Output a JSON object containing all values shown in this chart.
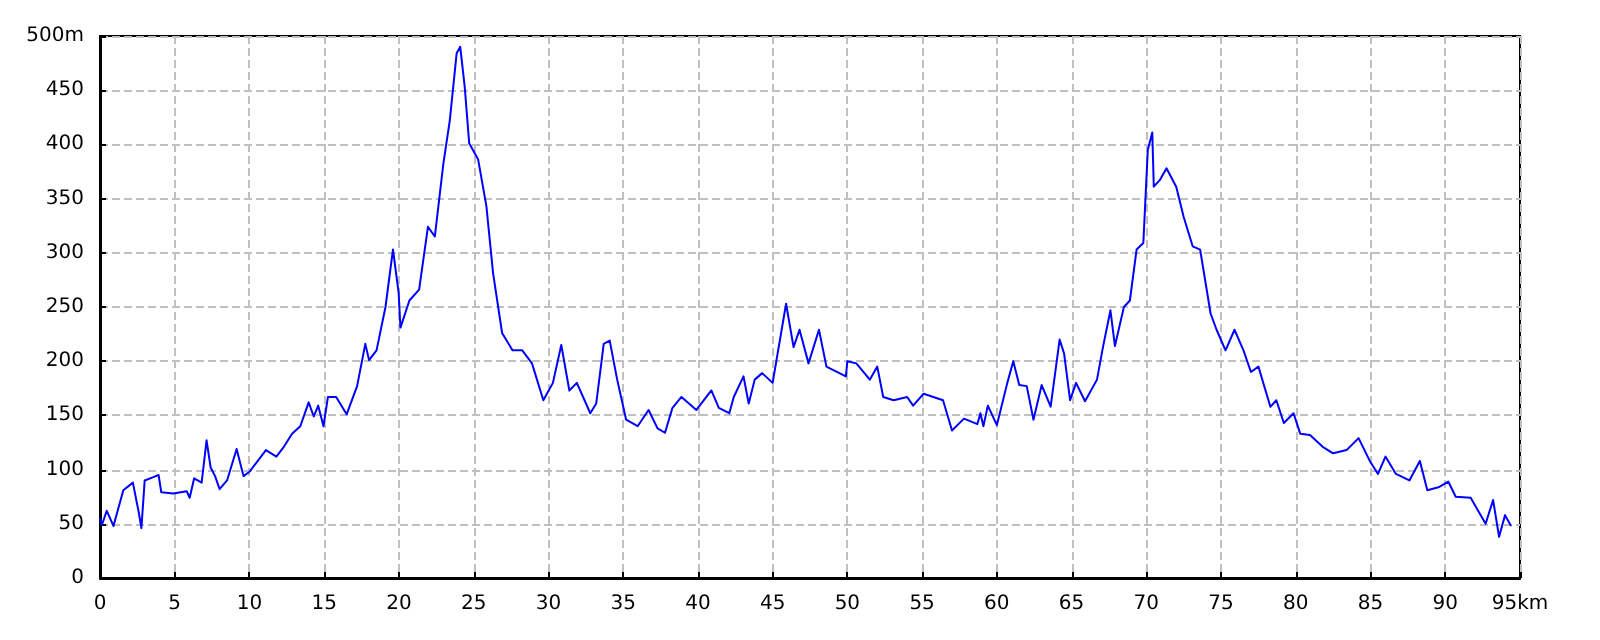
{
  "chart_data": {
    "type": "line",
    "x": [
      0,
      0.13,
      0.45,
      0.9,
      1.56,
      2.2,
      2.6,
      2.77,
      2.99,
      3.57,
      3.92,
      4.1,
      4.9,
      5.8,
      6.0,
      6.3,
      6.8,
      7.13,
      7.4,
      7.7,
      8.0,
      8.5,
      9.14,
      9.6,
      10.0,
      11.1,
      11.8,
      12.3,
      12.85,
      13.4,
      13.96,
      14.3,
      14.6,
      14.95,
      15.25,
      15.8,
      16.5,
      17.2,
      17.75,
      18.0,
      18.5,
      19.1,
      19.6,
      19.98,
      20.1,
      20.7,
      21.35,
      21.94,
      22.4,
      22.97,
      23.4,
      23.86,
      24.1,
      24.4,
      24.7,
      25.3,
      25.85,
      26.3,
      26.9,
      27.6,
      28.25,
      28.9,
      29.66,
      30.3,
      30.86,
      31.4,
      31.9,
      32.8,
      33.2,
      33.7,
      34.1,
      34.6,
      35.2,
      35.97,
      36.7,
      37.3,
      37.8,
      38.3,
      38.9,
      39.9,
      40.9,
      41.4,
      42.1,
      42.4,
      43.05,
      43.4,
      43.8,
      44.3,
      45.0,
      45.9,
      46.4,
      46.8,
      47.4,
      48.1,
      48.6,
      49.9,
      50.0,
      50.6,
      51.5,
      52.0,
      52.4,
      53.1,
      54.0,
      54.4,
      55.1,
      56.4,
      57.0,
      57.8,
      58.7,
      58.9,
      59.1,
      59.4,
      60.0,
      60.7,
      61.1,
      61.5,
      62.0,
      62.45,
      63.0,
      63.6,
      64.2,
      64.5,
      64.9,
      65.3,
      65.9,
      66.7,
      67.1,
      67.6,
      67.9,
      68.5,
      68.9,
      69.35,
      69.8,
      70.1,
      70.4,
      70.5,
      70.9,
      71.35,
      72.0,
      72.5,
      73.1,
      73.6,
      74.3,
      74.7,
      75.3,
      75.9,
      76.5,
      77.0,
      77.5,
      78.3,
      78.7,
      79.2,
      79.85,
      80.3,
      80.95,
      81.8,
      82.5,
      83.4,
      84.2,
      84.95,
      85.5,
      86.0,
      86.7,
      87.6,
      88.3,
      88.8,
      89.6,
      90.2,
      90.7,
      91.7,
      92.7,
      93.2,
      93.6,
      94.0,
      94.4
    ],
    "series": [
      {
        "color": "#0000ff",
        "values": [
          55,
          49,
          62,
          48,
          81,
          88,
          60,
          46,
          90,
          93,
          95,
          79,
          78,
          80,
          74,
          92,
          88,
          127,
          102,
          94,
          82,
          90,
          119,
          94,
          98,
          118,
          112,
          121,
          133,
          140,
          162,
          149,
          159,
          140,
          167,
          167,
          151,
          177,
          216,
          201,
          210,
          250,
          303,
          263,
          231,
          256,
          266,
          324,
          315,
          382,
          422,
          484,
          490,
          453,
          401,
          386,
          343,
          281,
          226,
          210,
          210,
          198,
          164,
          180,
          215,
          173,
          180,
          152,
          161,
          216,
          219,
          183,
          146,
          140,
          155,
          138,
          134,
          157,
          167,
          155,
          173,
          157,
          152,
          167,
          186,
          161,
          183,
          189,
          180,
          253,
          213,
          229,
          198,
          229,
          195,
          186,
          200,
          198,
          183,
          195,
          167,
          164,
          167,
          159,
          170,
          164,
          136,
          147,
          142,
          152,
          140,
          159,
          141,
          180,
          200,
          178,
          177,
          146,
          178,
          158,
          220,
          207,
          164,
          180,
          163,
          183,
          213,
          247,
          214,
          250,
          256,
          303,
          309,
          395,
          411,
          361,
          367,
          378,
          361,
          333,
          306,
          303,
          244,
          229,
          210,
          229,
          210,
          190,
          195,
          158,
          164,
          143,
          152,
          133,
          132,
          121,
          115,
          118,
          129,
          108,
          96,
          112,
          96,
          90,
          108,
          81,
          84,
          89,
          75,
          74,
          50,
          72,
          38,
          58,
          48
        ]
      }
    ],
    "xlim": [
      0,
      95
    ],
    "xticks": [
      0,
      5,
      10,
      15,
      20,
      25,
      30,
      35,
      40,
      45,
      50,
      55,
      60,
      65,
      70,
      75,
      80,
      85,
      90,
      {
        "value": 95,
        "label": "95km"
      }
    ],
    "ylim": [
      0,
      500
    ],
    "yticks": [
      0,
      50,
      100,
      150,
      200,
      250,
      300,
      350,
      400,
      450,
      {
        "value": 500,
        "label": "500m"
      }
    ],
    "grid": true,
    "marker": "none",
    "line_style": "solid"
  }
}
